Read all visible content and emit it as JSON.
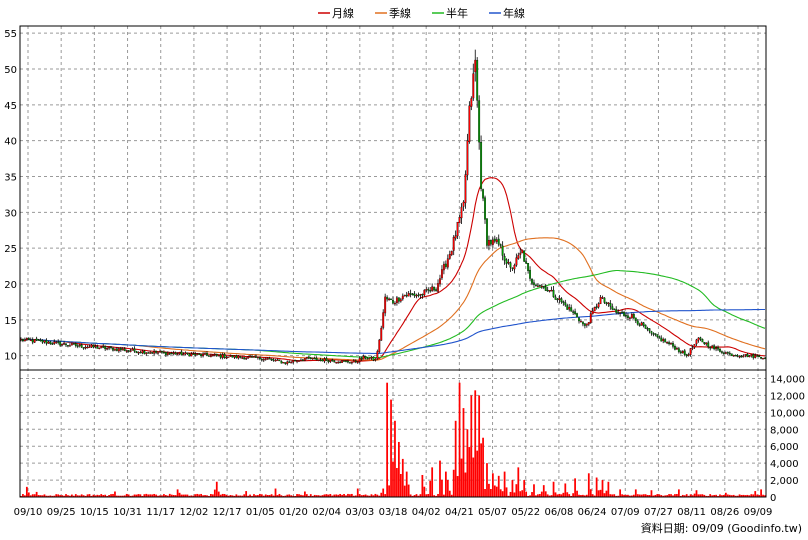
{
  "chart_data": {
    "type": "candlestick",
    "legend": [
      {
        "label": "月線",
        "color": "#cc0000"
      },
      {
        "label": "季線",
        "color": "#e07020"
      },
      {
        "label": "半年",
        "color": "#22bb22"
      },
      {
        "label": "年線",
        "color": "#2255cc"
      }
    ],
    "x_ticks": [
      "09/10",
      "09/25",
      "10/15",
      "10/31",
      "11/17",
      "12/02",
      "12/17",
      "01/05",
      "01/20",
      "02/04",
      "03/03",
      "03/18",
      "04/02",
      "04/21",
      "05/07",
      "05/22",
      "06/08",
      "06/24",
      "07/09",
      "07/27",
      "08/11",
      "08/26",
      "09/09"
    ],
    "price_axis": {
      "min": 8,
      "max": 56,
      "ticks": [
        10,
        15,
        20,
        25,
        30,
        35,
        40,
        45,
        50,
        55
      ]
    },
    "volume_axis": {
      "min": 0,
      "max": 15000,
      "ticks": [
        0,
        2000,
        4000,
        6000,
        8000,
        10000,
        12000,
        14000
      ],
      "labels": [
        "0",
        "2,000",
        "4,000",
        "6,000",
        "8,000",
        "10,000",
        "12,000",
        "14,000"
      ]
    },
    "price_keyframes": [
      [
        0,
        12.2
      ],
      [
        10,
        12.0
      ],
      [
        25,
        11.5
      ],
      [
        45,
        11.0
      ],
      [
        65,
        10.5
      ],
      [
        85,
        10.2
      ],
      [
        105,
        9.9
      ],
      [
        125,
        9.6
      ],
      [
        135,
        9.0
      ],
      [
        145,
        9.6
      ],
      [
        160,
        9.3
      ],
      [
        170,
        9.1
      ],
      [
        176,
        9.8
      ],
      [
        181,
        9.4
      ],
      [
        183,
        12.0
      ],
      [
        186,
        18.0
      ],
      [
        190,
        17.5
      ],
      [
        196,
        18.5
      ],
      [
        204,
        18.5
      ],
      [
        212,
        19.5
      ],
      [
        220,
        25.0
      ],
      [
        226,
        31.0
      ],
      [
        229,
        44.0
      ],
      [
        232,
        51.0
      ],
      [
        235,
        34.0
      ],
      [
        238,
        26.0
      ],
      [
        244,
        25.5
      ],
      [
        250,
        22.0
      ],
      [
        256,
        24.5
      ],
      [
        260,
        20.5
      ],
      [
        268,
        19.5
      ],
      [
        276,
        17.5
      ],
      [
        284,
        15.5
      ],
      [
        288,
        14.0
      ],
      [
        296,
        18.0
      ],
      [
        304,
        16.0
      ],
      [
        312,
        15.5
      ],
      [
        322,
        13.0
      ],
      [
        332,
        11.5
      ],
      [
        340,
        10.0
      ],
      [
        346,
        12.3
      ],
      [
        354,
        11.0
      ],
      [
        362,
        10.2
      ],
      [
        372,
        10.0
      ],
      [
        380,
        9.8
      ]
    ],
    "volume_spikes": [
      [
        3,
        1200
      ],
      [
        8,
        600
      ],
      [
        48,
        650
      ],
      [
        65,
        300
      ],
      [
        80,
        900
      ],
      [
        100,
        1800
      ],
      [
        115,
        700
      ],
      [
        130,
        1000
      ],
      [
        145,
        650
      ],
      [
        172,
        1000
      ],
      [
        185,
        1000
      ],
      [
        187,
        13500
      ],
      [
        189,
        11500
      ],
      [
        191,
        9000
      ],
      [
        193,
        6500
      ],
      [
        195,
        4500
      ],
      [
        197,
        3000
      ],
      [
        205,
        2600
      ],
      [
        210,
        3500
      ],
      [
        214,
        4300
      ],
      [
        217,
        3000
      ],
      [
        218,
        2000
      ],
      [
        222,
        9000
      ],
      [
        224,
        13500
      ],
      [
        226,
        10500
      ],
      [
        228,
        8000
      ],
      [
        230,
        12000
      ],
      [
        232,
        12600
      ],
      [
        234,
        12000
      ],
      [
        236,
        7000
      ],
      [
        238,
        4000
      ],
      [
        241,
        2800
      ],
      [
        244,
        2500
      ],
      [
        247,
        3000
      ],
      [
        251,
        2000
      ],
      [
        254,
        3500
      ],
      [
        257,
        2000
      ],
      [
        262,
        1500
      ],
      [
        267,
        1400
      ],
      [
        272,
        1800
      ],
      [
        278,
        1600
      ],
      [
        283,
        2200
      ],
      [
        290,
        2800
      ],
      [
        294,
        2300
      ],
      [
        297,
        2000
      ],
      [
        300,
        1800
      ],
      [
        306,
        900
      ],
      [
        314,
        900
      ],
      [
        322,
        800
      ],
      [
        336,
        900
      ],
      [
        345,
        800
      ],
      [
        360,
        500
      ],
      [
        375,
        700
      ],
      [
        378,
        900
      ]
    ],
    "footer": "資料日期: 09/09  (Goodinfo.tw)"
  }
}
